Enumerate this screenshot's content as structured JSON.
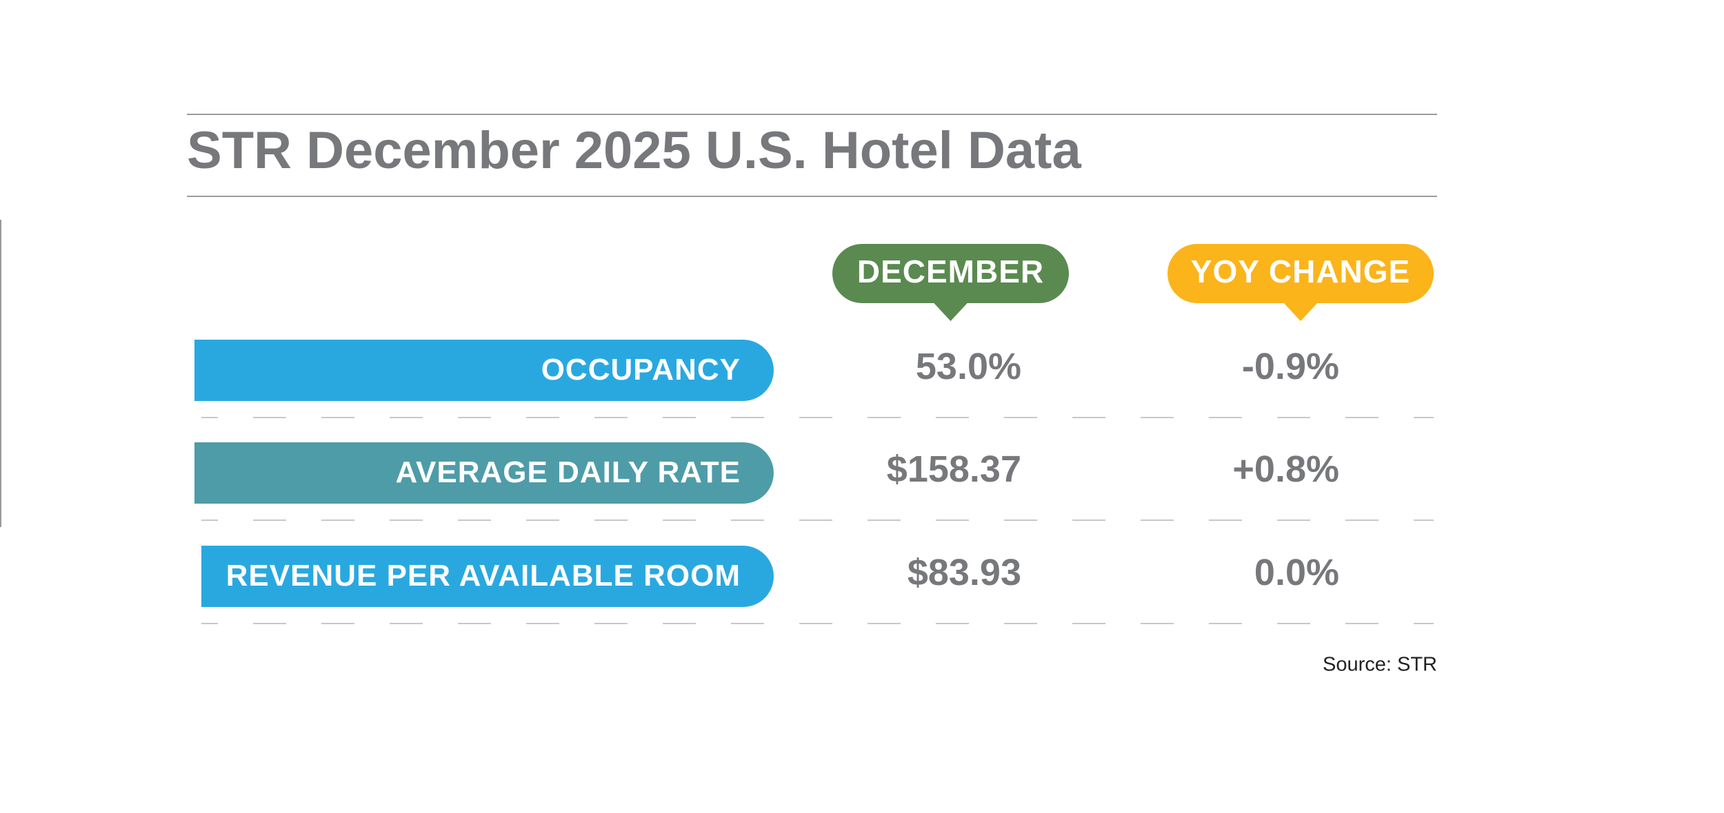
{
  "title": "STR December 2025 U.S. Hotel Data",
  "table": {
    "columns": [
      "DECEMBER",
      "YOY CHANGE"
    ],
    "rows": [
      {
        "label": "OCCUPANCY",
        "december": "53.0%",
        "yoy": "-0.9%"
      },
      {
        "label": "AVERAGE DAILY RATE",
        "december": "$158.37",
        "yoy": "+0.8%"
      },
      {
        "label": "REVENUE PER AVAILABLE ROOM",
        "december": "$83.93",
        "yoy": "0.0%"
      }
    ]
  },
  "source": "Source: STR"
}
